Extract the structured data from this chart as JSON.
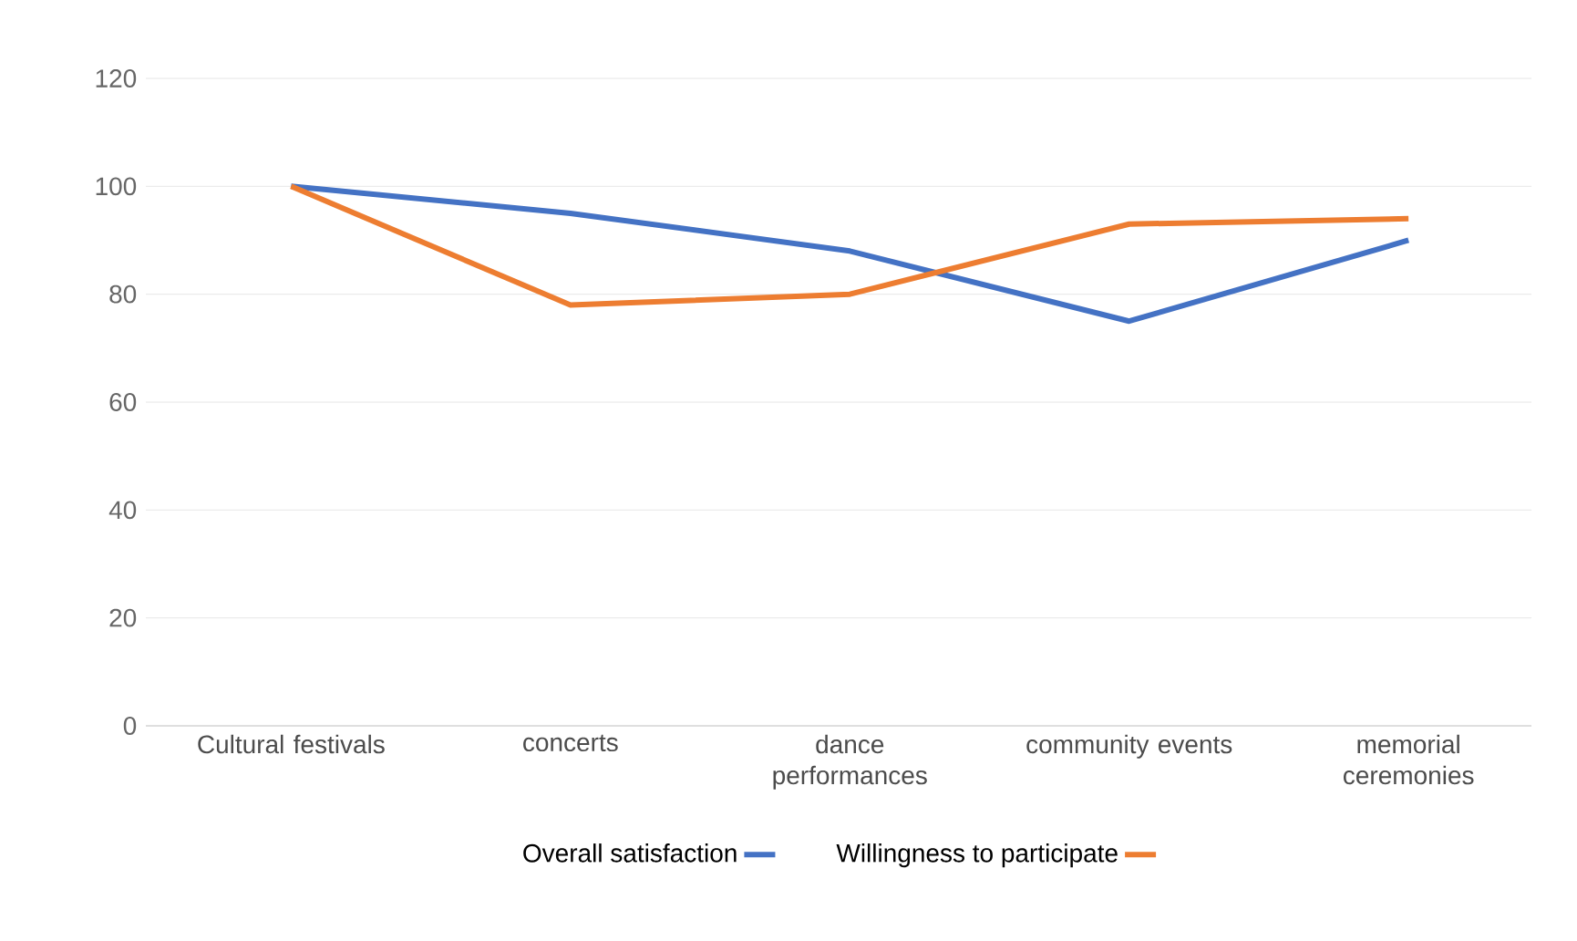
{
  "chart_data": {
    "type": "line",
    "categories": [
      "Cultural festivals",
      "concerts",
      "dance performances",
      "community events",
      "memorial ceremonies"
    ],
    "series": [
      {
        "name": "Overall satisfaction",
        "color": "#4472c4",
        "values": [
          100,
          95,
          88,
          75,
          90
        ]
      },
      {
        "name": "Willingness to participate",
        "color": "#ed7d31",
        "values": [
          100,
          78,
          80,
          93,
          94
        ]
      }
    ],
    "ylim": [
      0,
      120
    ],
    "yticks": [
      0,
      20,
      40,
      60,
      80,
      100,
      120
    ],
    "grid": "y",
    "legend": "bottom",
    "marker": "none",
    "line_style": "solid"
  }
}
